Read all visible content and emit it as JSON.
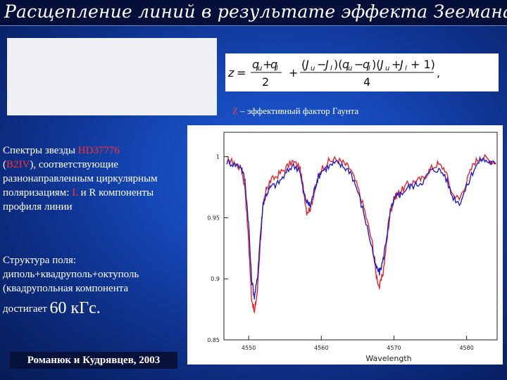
{
  "title": "Расщепление линий в результате эффекта Зеемана",
  "formula": {
    "z_symbol": "Z",
    "description": " – эффективный фактор Гаунта"
  },
  "text": {
    "spectra_prefix": "Спектры звезды ",
    "star_name": "HD37776",
    "star_type_open": "(",
    "star_type": "B2IV",
    "spectra_after_type": "), соответствующие разнонаправленным циркулярным поляризациям: ",
    "component_L": "L",
    "spectra_end": " и R компоненты профиля линии",
    "structure_line": "Структура поля: диполь+квадруполь+октуполь (квадрупольная компонента",
    "reaches": "достигает ",
    "field_value": "60 кГс.",
    "credit": "Романюк и Кудрявцев, 2003"
  },
  "colors": {
    "red_series": "#e8222a",
    "blue_series": "#2020c8"
  },
  "chart_data": {
    "type": "line",
    "xlabel": "Wavelength",
    "ylabel": "",
    "xlim": [
      4546.6,
      4584.2
    ],
    "ylim": [
      0.85,
      1.02
    ],
    "x_ticks": [
      4550,
      4560,
      4570,
      4580
    ],
    "x_tick_labels": [
      "4550",
      "4560",
      "4570",
      "4580"
    ],
    "y_ticks": [
      1.0,
      0.95,
      0.9,
      0.85
    ],
    "y_tick_labels": [
      "1",
      "0.95",
      "0.9",
      "0.85"
    ],
    "series": [
      {
        "color": "#e8222a",
        "x": [
          4547,
          4548,
          4549,
          4549.5,
          4550,
          4550.4,
          4550.8,
          4551.2,
          4551.6,
          4552,
          4552.5,
          4553,
          4554,
          4555,
          4556,
          4557,
          4557.5,
          4558,
          4558.5,
          4559,
          4559.5,
          4560,
          4561,
          4562,
          4563,
          4564,
          4565,
          4566,
          4567,
          4567.5,
          4568,
          4568.5,
          4569,
          4569.5,
          4570,
          4570.5,
          4571,
          4572,
          4573,
          4574,
          4575,
          4576,
          4577,
          4578,
          4579,
          4580,
          4581,
          4582,
          4583,
          4584
        ],
        "y": [
          0.998,
          0.995,
          0.99,
          0.975,
          0.93,
          0.885,
          0.872,
          0.89,
          0.93,
          0.96,
          0.975,
          0.98,
          0.985,
          0.99,
          0.996,
          0.992,
          0.975,
          0.955,
          0.958,
          0.97,
          0.982,
          0.99,
          0.996,
          0.998,
          0.995,
          0.99,
          0.975,
          0.955,
          0.93,
          0.905,
          0.893,
          0.905,
          0.93,
          0.955,
          0.965,
          0.97,
          0.972,
          0.978,
          0.98,
          0.982,
          0.99,
          0.994,
          0.99,
          0.97,
          0.965,
          0.98,
          0.995,
          1.0,
          0.998,
          0.995
        ]
      },
      {
        "color": "#2020c8",
        "x": [
          4547,
          4548,
          4549,
          4549.5,
          4550,
          4550.4,
          4550.8,
          4551.2,
          4551.6,
          4552,
          4552.5,
          4553,
          4554,
          4555,
          4556,
          4557,
          4557.5,
          4558,
          4558.5,
          4559,
          4559.5,
          4560,
          4561,
          4562,
          4563,
          4564,
          4565,
          4566,
          4567,
          4567.5,
          4568,
          4568.5,
          4569,
          4569.5,
          4570,
          4570.5,
          4571,
          4572,
          4573,
          4574,
          4575,
          4576,
          4577,
          4578,
          4579,
          4580,
          4581,
          4582,
          4583,
          4584
        ],
        "y": [
          0.996,
          0.994,
          0.992,
          0.98,
          0.945,
          0.9,
          0.885,
          0.9,
          0.935,
          0.962,
          0.97,
          0.975,
          0.978,
          0.985,
          0.993,
          0.99,
          0.972,
          0.963,
          0.96,
          0.972,
          0.982,
          0.988,
          0.992,
          0.995,
          0.992,
          0.988,
          0.972,
          0.95,
          0.925,
          0.91,
          0.905,
          0.915,
          0.935,
          0.955,
          0.965,
          0.968,
          0.97,
          0.975,
          0.977,
          0.98,
          0.988,
          0.99,
          0.985,
          0.968,
          0.962,
          0.975,
          0.99,
          0.998,
          0.996,
          0.994
        ]
      }
    ]
  }
}
